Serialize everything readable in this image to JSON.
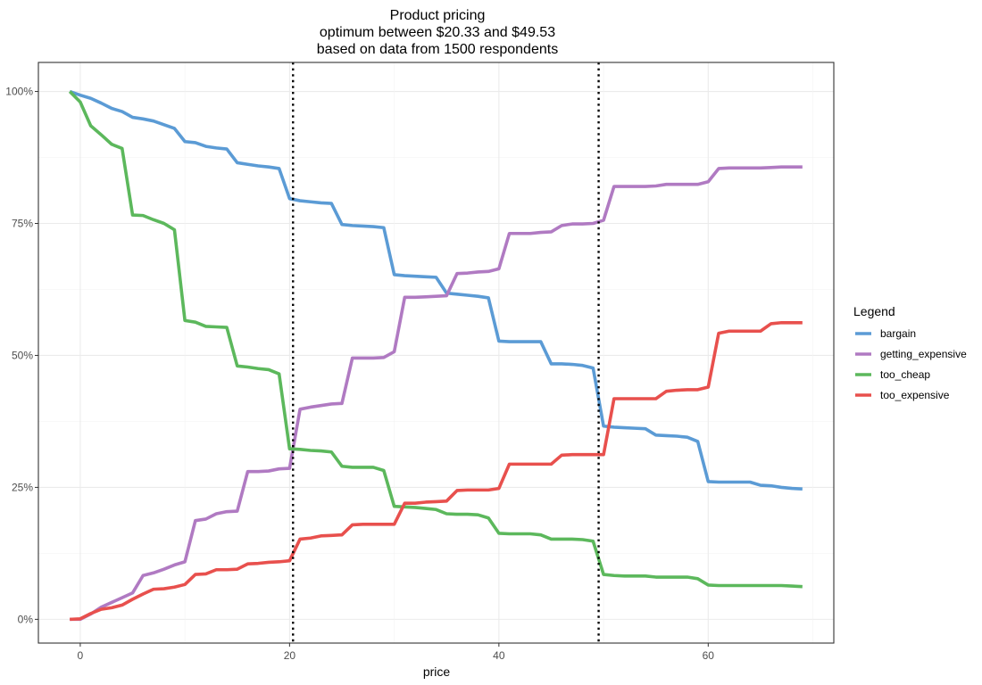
{
  "chart_data": {
    "type": "line",
    "title": "Product pricing",
    "subtitle_lines": [
      "optimum between $20.33 and $49.53",
      "based on data from 1500 respondents"
    ],
    "xlabel": "price",
    "ylabel": "",
    "xlim": [
      -4,
      72
    ],
    "ylim": [
      -0.045,
      1.055
    ],
    "x_ticks": [
      0,
      20,
      40,
      60
    ],
    "y_ticks": [
      0,
      0.25,
      0.5,
      0.75,
      1.0
    ],
    "y_tick_labels": [
      "0%",
      "25%",
      "50%",
      "75%",
      "100%"
    ],
    "vlines": [
      20.33,
      49.53
    ],
    "grid": true,
    "legend": {
      "title": "Legend",
      "position": "right"
    },
    "series": [
      {
        "name": "bargain",
        "color": "#5B9BD5",
        "points": [
          [
            -1,
            1.0
          ],
          [
            0,
            0.993
          ],
          [
            1,
            0.987
          ],
          [
            2,
            0.978
          ],
          [
            3,
            0.968
          ],
          [
            4,
            0.962
          ],
          [
            5,
            0.951
          ],
          [
            6,
            0.948
          ],
          [
            7,
            0.944
          ],
          [
            8,
            0.937
          ],
          [
            9,
            0.93
          ],
          [
            10,
            0.905
          ],
          [
            11,
            0.903
          ],
          [
            12,
            0.896
          ],
          [
            13,
            0.893
          ],
          [
            14,
            0.891
          ],
          [
            15,
            0.865
          ],
          [
            16,
            0.862
          ],
          [
            17,
            0.859
          ],
          [
            18,
            0.857
          ],
          [
            19,
            0.854
          ],
          [
            20,
            0.797
          ],
          [
            21,
            0.793
          ],
          [
            22,
            0.791
          ],
          [
            23,
            0.789
          ],
          [
            24,
            0.788
          ],
          [
            25,
            0.748
          ],
          [
            26,
            0.746
          ],
          [
            27,
            0.745
          ],
          [
            28,
            0.744
          ],
          [
            29,
            0.742
          ],
          [
            30,
            0.653
          ],
          [
            31,
            0.651
          ],
          [
            32,
            0.65
          ],
          [
            33,
            0.649
          ],
          [
            34,
            0.648
          ],
          [
            35,
            0.618
          ],
          [
            36,
            0.616
          ],
          [
            37,
            0.614
          ],
          [
            38,
            0.612
          ],
          [
            39,
            0.609
          ],
          [
            40,
            0.527
          ],
          [
            41,
            0.526
          ],
          [
            42,
            0.526
          ],
          [
            43,
            0.526
          ],
          [
            44,
            0.526
          ],
          [
            45,
            0.484
          ],
          [
            46,
            0.484
          ],
          [
            47,
            0.483
          ],
          [
            48,
            0.481
          ],
          [
            49,
            0.476
          ],
          [
            50,
            0.366
          ],
          [
            51,
            0.364
          ],
          [
            52,
            0.363
          ],
          [
            53,
            0.362
          ],
          [
            54,
            0.361
          ],
          [
            55,
            0.349
          ],
          [
            56,
            0.348
          ],
          [
            57,
            0.347
          ],
          [
            58,
            0.345
          ],
          [
            59,
            0.337
          ],
          [
            60,
            0.261
          ],
          [
            61,
            0.26
          ],
          [
            62,
            0.26
          ],
          [
            63,
            0.26
          ],
          [
            64,
            0.26
          ],
          [
            65,
            0.254
          ],
          [
            66,
            0.253
          ],
          [
            67,
            0.25
          ],
          [
            68,
            0.248
          ],
          [
            69,
            0.247
          ]
        ]
      },
      {
        "name": "getting_expensive",
        "color": "#B07AC2",
        "points": [
          [
            -1,
            0.0
          ],
          [
            0,
            0.0
          ],
          [
            1,
            0.01
          ],
          [
            2,
            0.023
          ],
          [
            3,
            0.032
          ],
          [
            4,
            0.041
          ],
          [
            5,
            0.05
          ],
          [
            6,
            0.083
          ],
          [
            7,
            0.088
          ],
          [
            8,
            0.095
          ],
          [
            9,
            0.103
          ],
          [
            10,
            0.109
          ],
          [
            11,
            0.187
          ],
          [
            12,
            0.19
          ],
          [
            13,
            0.2
          ],
          [
            14,
            0.204
          ],
          [
            15,
            0.205
          ],
          [
            16,
            0.28
          ],
          [
            17,
            0.28
          ],
          [
            18,
            0.281
          ],
          [
            19,
            0.285
          ],
          [
            20,
            0.286
          ],
          [
            21,
            0.398
          ],
          [
            22,
            0.402
          ],
          [
            23,
            0.405
          ],
          [
            24,
            0.408
          ],
          [
            25,
            0.409
          ],
          [
            26,
            0.495
          ],
          [
            27,
            0.495
          ],
          [
            28,
            0.495
          ],
          [
            29,
            0.496
          ],
          [
            30,
            0.507
          ],
          [
            31,
            0.61
          ],
          [
            32,
            0.61
          ],
          [
            33,
            0.611
          ],
          [
            34,
            0.612
          ],
          [
            35,
            0.613
          ],
          [
            36,
            0.655
          ],
          [
            37,
            0.656
          ],
          [
            38,
            0.658
          ],
          [
            39,
            0.659
          ],
          [
            40,
            0.664
          ],
          [
            41,
            0.731
          ],
          [
            42,
            0.731
          ],
          [
            43,
            0.731
          ],
          [
            44,
            0.733
          ],
          [
            45,
            0.734
          ],
          [
            46,
            0.746
          ],
          [
            47,
            0.749
          ],
          [
            48,
            0.749
          ],
          [
            49,
            0.75
          ],
          [
            50,
            0.756
          ],
          [
            51,
            0.82
          ],
          [
            52,
            0.82
          ],
          [
            53,
            0.82
          ],
          [
            54,
            0.82
          ],
          [
            55,
            0.821
          ],
          [
            56,
            0.824
          ],
          [
            57,
            0.824
          ],
          [
            58,
            0.824
          ],
          [
            59,
            0.824
          ],
          [
            60,
            0.829
          ],
          [
            61,
            0.854
          ],
          [
            62,
            0.855
          ],
          [
            63,
            0.855
          ],
          [
            64,
            0.855
          ],
          [
            65,
            0.855
          ],
          [
            66,
            0.856
          ],
          [
            67,
            0.857
          ],
          [
            68,
            0.857
          ],
          [
            69,
            0.857
          ]
        ]
      },
      {
        "name": "too_cheap",
        "color": "#5CB85C",
        "points": [
          [
            -1,
            1.0
          ],
          [
            0,
            0.98
          ],
          [
            1,
            0.935
          ],
          [
            2,
            0.918
          ],
          [
            3,
            0.9
          ],
          [
            4,
            0.892
          ],
          [
            5,
            0.766
          ],
          [
            6,
            0.765
          ],
          [
            7,
            0.757
          ],
          [
            8,
            0.75
          ],
          [
            9,
            0.738
          ],
          [
            10,
            0.566
          ],
          [
            11,
            0.563
          ],
          [
            12,
            0.555
          ],
          [
            13,
            0.554
          ],
          [
            14,
            0.553
          ],
          [
            15,
            0.48
          ],
          [
            16,
            0.478
          ],
          [
            17,
            0.475
          ],
          [
            18,
            0.473
          ],
          [
            19,
            0.465
          ],
          [
            20,
            0.323
          ],
          [
            21,
            0.322
          ],
          [
            22,
            0.32
          ],
          [
            23,
            0.319
          ],
          [
            24,
            0.317
          ],
          [
            25,
            0.29
          ],
          [
            26,
            0.288
          ],
          [
            27,
            0.288
          ],
          [
            28,
            0.288
          ],
          [
            29,
            0.282
          ],
          [
            30,
            0.214
          ],
          [
            31,
            0.213
          ],
          [
            32,
            0.212
          ],
          [
            33,
            0.21
          ],
          [
            34,
            0.208
          ],
          [
            35,
            0.2
          ],
          [
            36,
            0.199
          ],
          [
            37,
            0.199
          ],
          [
            38,
            0.198
          ],
          [
            39,
            0.192
          ],
          [
            40,
            0.163
          ],
          [
            41,
            0.162
          ],
          [
            42,
            0.162
          ],
          [
            43,
            0.162
          ],
          [
            44,
            0.16
          ],
          [
            45,
            0.152
          ],
          [
            46,
            0.152
          ],
          [
            47,
            0.152
          ],
          [
            48,
            0.151
          ],
          [
            49,
            0.148
          ],
          [
            50,
            0.085
          ],
          [
            51,
            0.083
          ],
          [
            52,
            0.082
          ],
          [
            53,
            0.082
          ],
          [
            54,
            0.082
          ],
          [
            55,
            0.08
          ],
          [
            56,
            0.08
          ],
          [
            57,
            0.08
          ],
          [
            58,
            0.08
          ],
          [
            59,
            0.077
          ],
          [
            60,
            0.065
          ],
          [
            61,
            0.064
          ],
          [
            62,
            0.064
          ],
          [
            63,
            0.064
          ],
          [
            64,
            0.064
          ],
          [
            65,
            0.064
          ],
          [
            66,
            0.064
          ],
          [
            67,
            0.064
          ],
          [
            68,
            0.063
          ],
          [
            69,
            0.062
          ]
        ]
      },
      {
        "name": "too_expensive",
        "color": "#E8504D",
        "points": [
          [
            -1,
            0.0
          ],
          [
            0,
            0.001
          ],
          [
            1,
            0.011
          ],
          [
            2,
            0.019
          ],
          [
            3,
            0.022
          ],
          [
            4,
            0.027
          ],
          [
            5,
            0.038
          ],
          [
            6,
            0.048
          ],
          [
            7,
            0.057
          ],
          [
            8,
            0.058
          ],
          [
            9,
            0.061
          ],
          [
            10,
            0.066
          ],
          [
            11,
            0.085
          ],
          [
            12,
            0.086
          ],
          [
            13,
            0.094
          ],
          [
            14,
            0.094
          ],
          [
            15,
            0.095
          ],
          [
            16,
            0.105
          ],
          [
            17,
            0.106
          ],
          [
            18,
            0.108
          ],
          [
            19,
            0.109
          ],
          [
            20,
            0.111
          ],
          [
            21,
            0.152
          ],
          [
            22,
            0.154
          ],
          [
            23,
            0.158
          ],
          [
            24,
            0.159
          ],
          [
            25,
            0.16
          ],
          [
            26,
            0.179
          ],
          [
            27,
            0.18
          ],
          [
            28,
            0.18
          ],
          [
            29,
            0.18
          ],
          [
            30,
            0.18
          ],
          [
            31,
            0.22
          ],
          [
            32,
            0.22
          ],
          [
            33,
            0.222
          ],
          [
            34,
            0.223
          ],
          [
            35,
            0.224
          ],
          [
            36,
            0.244
          ],
          [
            37,
            0.245
          ],
          [
            38,
            0.245
          ],
          [
            39,
            0.245
          ],
          [
            40,
            0.248
          ],
          [
            41,
            0.294
          ],
          [
            42,
            0.294
          ],
          [
            43,
            0.294
          ],
          [
            44,
            0.294
          ],
          [
            45,
            0.294
          ],
          [
            46,
            0.311
          ],
          [
            47,
            0.312
          ],
          [
            48,
            0.312
          ],
          [
            49,
            0.312
          ],
          [
            50,
            0.312
          ],
          [
            51,
            0.418
          ],
          [
            52,
            0.418
          ],
          [
            53,
            0.418
          ],
          [
            54,
            0.418
          ],
          [
            55,
            0.418
          ],
          [
            56,
            0.432
          ],
          [
            57,
            0.434
          ],
          [
            58,
            0.435
          ],
          [
            59,
            0.435
          ],
          [
            60,
            0.44
          ],
          [
            61,
            0.542
          ],
          [
            62,
            0.546
          ],
          [
            63,
            0.546
          ],
          [
            64,
            0.546
          ],
          [
            65,
            0.546
          ],
          [
            66,
            0.56
          ],
          [
            67,
            0.562
          ],
          [
            68,
            0.562
          ],
          [
            69,
            0.562
          ]
        ]
      }
    ]
  }
}
